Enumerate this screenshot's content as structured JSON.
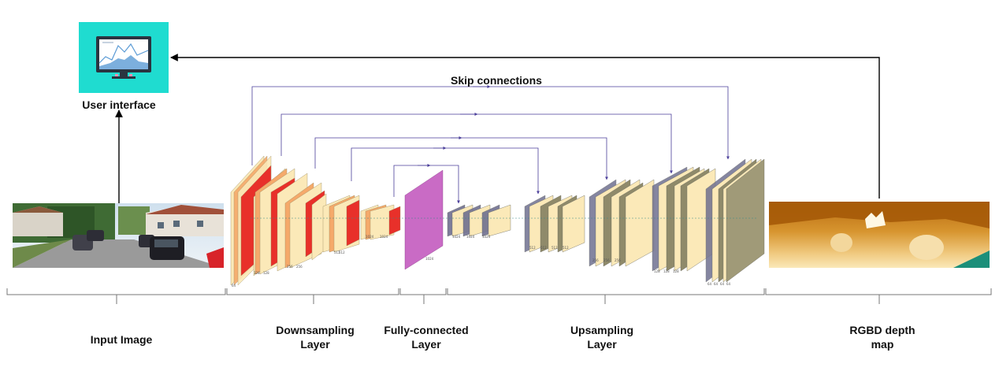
{
  "labels": {
    "user_interface": "User interface",
    "skip_connections": "Skip connections",
    "input_image": "Input Image",
    "downsampling_line1": "Downsampling",
    "downsampling_line2": "Layer",
    "fc_line1": "Fully-connected",
    "fc_line2": "Layer",
    "upsampling_line1": "Upsampling",
    "upsampling_line2": "Layer",
    "rgbd_line1": "RGBD depth",
    "rgbd_line2": "map"
  },
  "colors": {
    "monitor_bg": "#1fdcd0",
    "skip_arrow": "#4b3f9a",
    "block_red": "#e8302a",
    "block_orange": "#f5a96a",
    "block_cream": "#fbe9b8",
    "block_fc": "#c96bc5",
    "block_slate": "#6f7090",
    "block_olive": "#8f8a6a",
    "depth_map": "#d9a14f"
  },
  "layer_size_labels": {
    "enc1": [
      "64"
    ],
    "enc2": [
      "128",
      "128"
    ],
    "enc3": [
      "256",
      "256"
    ],
    "enc4": [
      "512",
      "512"
    ],
    "enc5": [
      "1024",
      "1024"
    ],
    "fc": [
      "1024"
    ],
    "dec1": [
      "1024",
      "1024",
      "1024"
    ],
    "dec2": [
      "512",
      "512",
      "512",
      "512"
    ],
    "dec3": [
      "256",
      "256",
      "256"
    ],
    "dec4": [
      "128",
      "128",
      "128"
    ],
    "dec5": [
      "64",
      "64",
      "64",
      "64"
    ]
  },
  "icons": {
    "monitor": "monitor-chart-icon"
  }
}
